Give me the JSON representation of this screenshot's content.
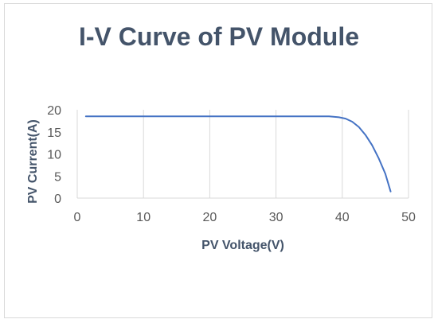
{
  "chart_data": {
    "type": "line",
    "title": "I-V Curve of PV Module",
    "xlabel": "PV Voltage(V)",
    "ylabel": "PV Current(A)",
    "xlim": [
      0,
      50
    ],
    "ylim": [
      0,
      20
    ],
    "x_ticks": [
      0,
      10,
      20,
      30,
      40,
      50
    ],
    "y_ticks": [
      0,
      5,
      10,
      15,
      20
    ],
    "grid": "vertical",
    "legend": "none",
    "series": [
      {
        "color": "#4472c4",
        "x": [
          1.3,
          10,
          20,
          30,
          36,
          38,
          39.5,
          40.5,
          41.5,
          42.5,
          43.5,
          44.5,
          45.5,
          46.5,
          47.3
        ],
        "y": [
          18.5,
          18.5,
          18.5,
          18.5,
          18.5,
          18.5,
          18.3,
          18.0,
          17.3,
          16.1,
          14.3,
          12.0,
          9.0,
          5.5,
          1.5
        ]
      }
    ]
  }
}
